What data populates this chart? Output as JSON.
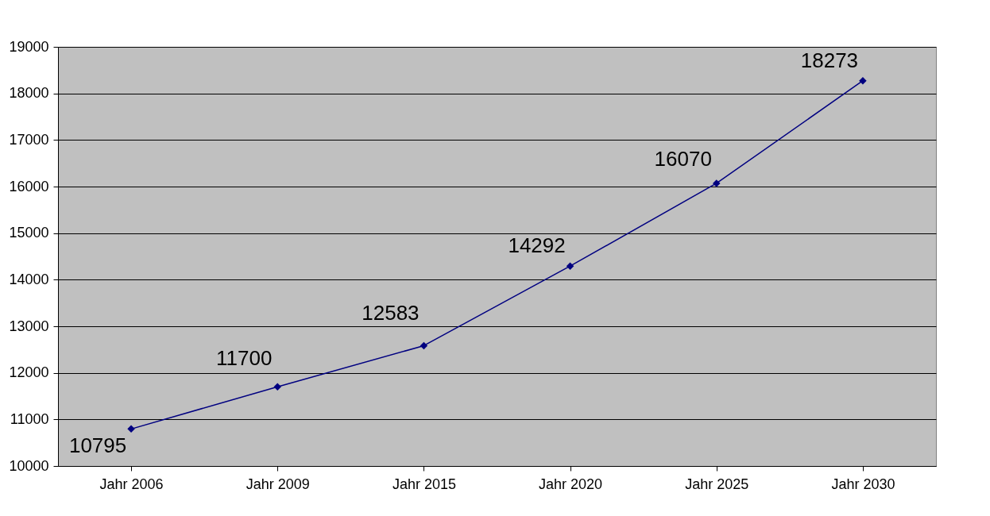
{
  "chart_data": {
    "type": "line",
    "categories": [
      "Jahr 2006",
      "Jahr 2009",
      "Jahr 2015",
      "Jahr 2020",
      "Jahr 2025",
      "Jahr 2030"
    ],
    "series": [
      {
        "color": "#000080",
        "values": [
          10795,
          11700,
          12583,
          14292,
          16070,
          18273
        ]
      }
    ],
    "ylim": [
      10000,
      19000
    ],
    "yticks": [
      10000,
      11000,
      12000,
      13000,
      14000,
      15000,
      16000,
      17000,
      18000,
      19000
    ],
    "grid": "y",
    "marker": "diamond",
    "line_style": "solid",
    "data_labels": true,
    "legend": false
  }
}
